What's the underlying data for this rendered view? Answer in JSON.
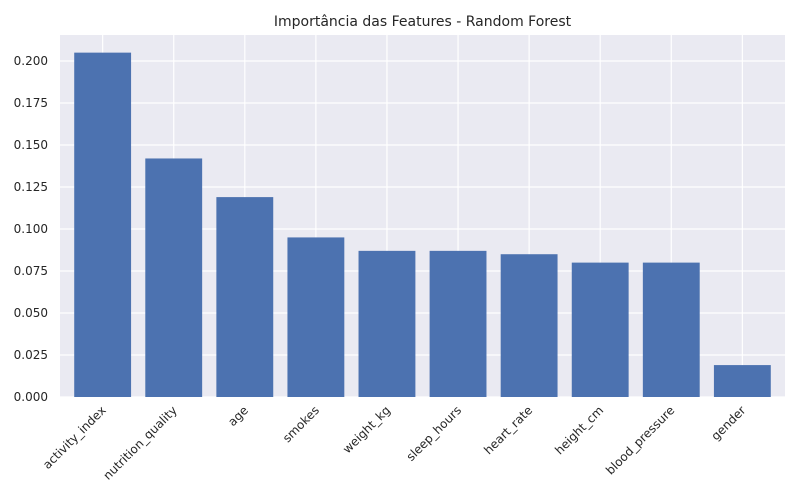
{
  "chart_data": {
    "type": "bar",
    "title": "Importância das Features - Random Forest",
    "xlabel": "",
    "ylabel": "",
    "categories": [
      "activity_index",
      "nutrition_quality",
      "age",
      "smokes",
      "weight_kg",
      "sleep_hours",
      "heart_rate",
      "height_cm",
      "blood_pressure",
      "gender"
    ],
    "values": [
      0.205,
      0.142,
      0.119,
      0.095,
      0.087,
      0.087,
      0.085,
      0.08,
      0.08,
      0.019
    ],
    "yticks": [
      "0.000",
      "0.025",
      "0.050",
      "0.075",
      "0.100",
      "0.125",
      "0.150",
      "0.175",
      "0.200"
    ],
    "ylim": [
      0,
      0.2155
    ],
    "grid": true,
    "colors": {
      "bar": "#4c72b0",
      "plot_background": "#eaeaf2",
      "grid": "#ffffff",
      "text": "#262626"
    }
  }
}
